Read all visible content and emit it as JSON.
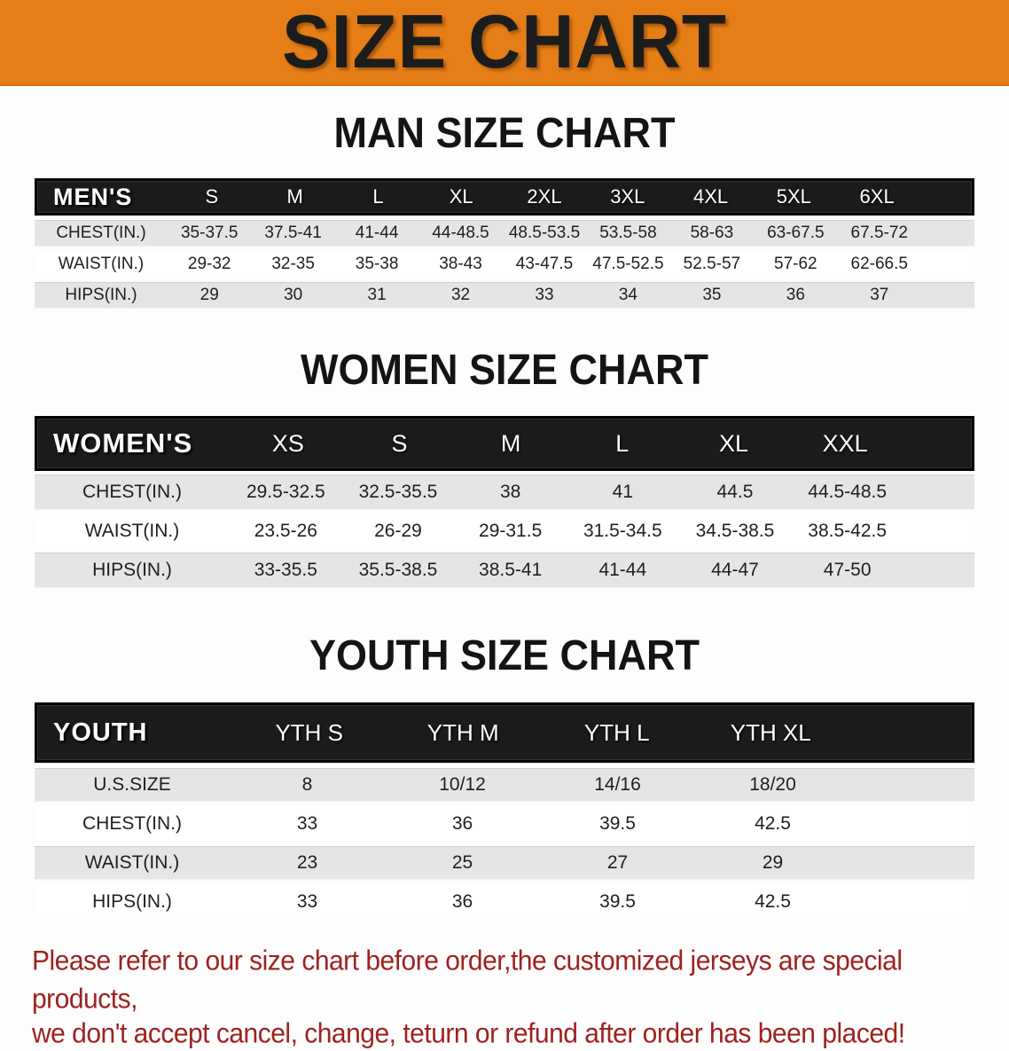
{
  "banner": {
    "title": "SIZE CHART",
    "bg_color": "#E67E17",
    "text_color": "#1c1c1c"
  },
  "sections": [
    {
      "title": "MAN SIZE CHART",
      "header_label": "MEN'S",
      "columns": [
        "S",
        "M",
        "L",
        "XL",
        "2XL",
        "3XL",
        "4XL",
        "5XL",
        "6XL"
      ],
      "rows": [
        {
          "label": "CHEST(IN.)",
          "values": [
            "35-37.5",
            "37.5-41",
            "41-44",
            "44-48.5",
            "48.5-53.5",
            "53.5-58",
            "58-63",
            "63-67.5",
            "67.5-72"
          ]
        },
        {
          "label": "WAIST(IN.)",
          "values": [
            "29-32",
            "32-35",
            "35-38",
            "38-43",
            "43-47.5",
            "47.5-52.5",
            "52.5-57",
            "57-62",
            "62-66.5"
          ]
        },
        {
          "label": "HIPS(IN.)",
          "values": [
            "29",
            "30",
            "31",
            "32",
            "33",
            "34",
            "35",
            "36",
            "37"
          ]
        }
      ]
    },
    {
      "title": "WOMEN SIZE CHART",
      "header_label": "WOMEN'S",
      "columns": [
        "XS",
        "S",
        "M",
        "L",
        "XL",
        "XXL"
      ],
      "rows": [
        {
          "label": "CHEST(IN.)",
          "values": [
            "29.5-32.5",
            "32.5-35.5",
            "38",
            "41",
            "44.5",
            "44.5-48.5"
          ]
        },
        {
          "label": "WAIST(IN.)",
          "values": [
            "23.5-26",
            "26-29",
            "29-31.5",
            "31.5-34.5",
            "34.5-38.5",
            "38.5-42.5"
          ]
        },
        {
          "label": "HIPS(IN.)",
          "values": [
            "33-35.5",
            "35.5-38.5",
            "38.5-41",
            "41-44",
            "44-47",
            "47-50"
          ]
        }
      ]
    },
    {
      "title": "YOUTH SIZE CHART",
      "header_label": "YOUTH",
      "columns": [
        "YTH S",
        "YTH M",
        "YTH L",
        "YTH XL"
      ],
      "rows": [
        {
          "label": "U.S.SIZE",
          "values": [
            "8",
            "10/12",
            "14/16",
            "18/20"
          ]
        },
        {
          "label": "CHEST(IN.)",
          "values": [
            "33",
            "36",
            "39.5",
            "42.5"
          ]
        },
        {
          "label": "WAIST(IN.)",
          "values": [
            "23",
            "25",
            "27",
            "29"
          ]
        },
        {
          "label": "HIPS(IN.)",
          "values": [
            "33",
            "36",
            "39.5",
            "42.5"
          ]
        }
      ]
    }
  ],
  "footer": {
    "line1": "Please refer to our size chart before order,the customized jerseys are special products,",
    "line2": "we don't accept cancel, change, teturn or refund after order has been placed!",
    "text_color": "#9e2220"
  },
  "colors": {
    "banner_orange": "#E67E17",
    "table_header_black": "#1b1b1b",
    "row_shade_gray": "#e5e5e5",
    "row_plain_white": "#ffffff",
    "notice_red": "#9e2220"
  }
}
